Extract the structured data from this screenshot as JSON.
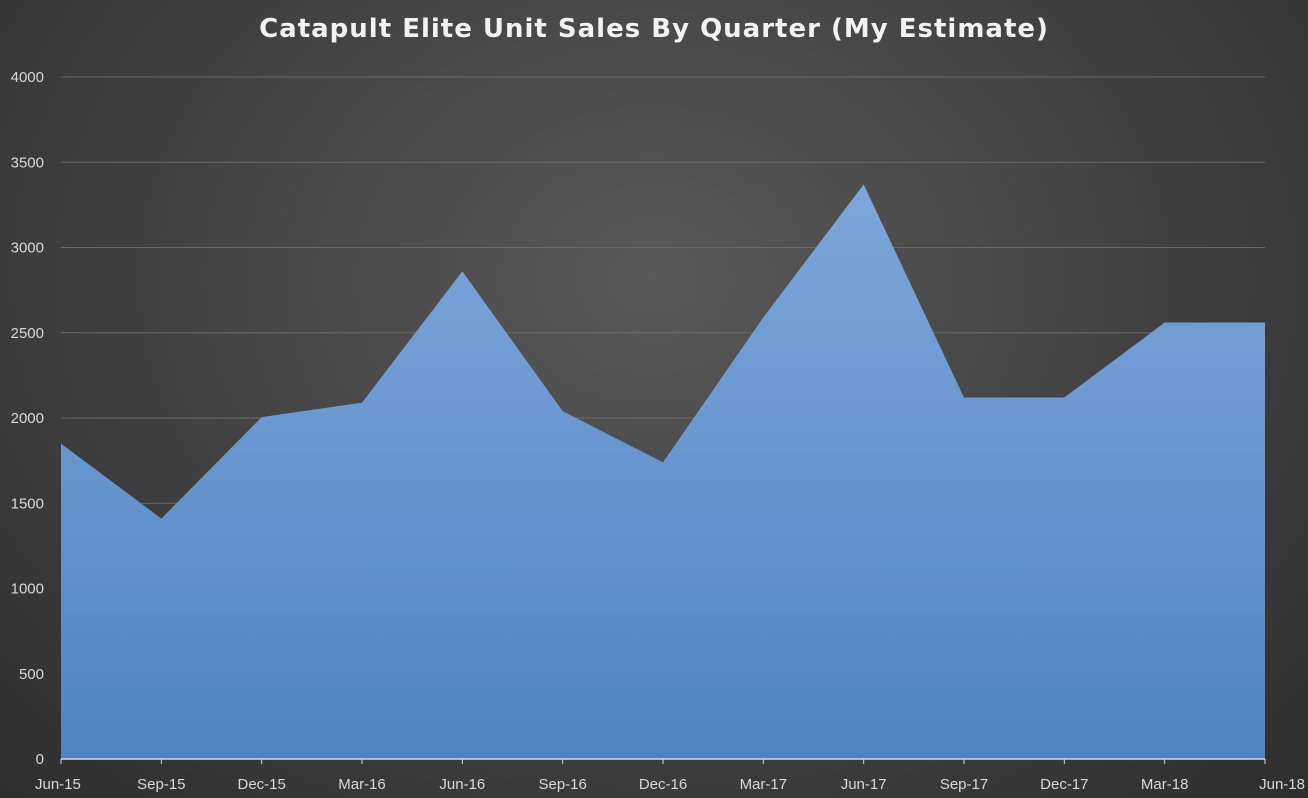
{
  "chart_data": {
    "type": "area",
    "title": "Catapult Elite Unit Sales By Quarter (My Estimate)",
    "xlabel": "",
    "ylabel": "",
    "categories": [
      "Jun-15",
      "Sep-15",
      "Dec-15",
      "Mar-16",
      "Jun-16",
      "Sep-16",
      "Dec-16",
      "Mar-17",
      "Jun-17",
      "Sep-17",
      "Dec-17",
      "Mar-18",
      "Jun-18"
    ],
    "values": [
      1850,
      1410,
      2005,
      2090,
      2860,
      2040,
      1740,
      2590,
      3370,
      2120,
      2120,
      2560,
      2560
    ],
    "ylim": [
      0,
      4000
    ],
    "yticks": [
      "0",
      "500",
      "1000",
      "1500",
      "2000",
      "2500",
      "3000",
      "3500",
      "4000"
    ],
    "grid": true,
    "legend": "none",
    "colors": {
      "area_top": "#7da7da",
      "area_bottom": "#4f84c1",
      "gridline": "#6a6a6a",
      "axis": "#d9d9d9",
      "text": "#d9d9d9"
    }
  }
}
